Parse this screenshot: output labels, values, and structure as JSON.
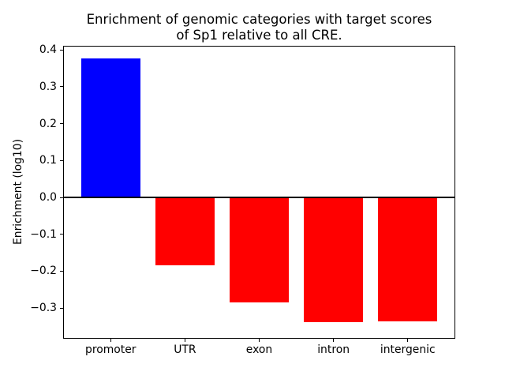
{
  "chart_data": {
    "type": "bar",
    "title": "Enrichment of genomic categories with target scores\nof Sp1 relative to all CRE.",
    "xlabel": "",
    "ylabel": "Enrichment (log10)",
    "categories": [
      "promoter",
      "UTR",
      "exon",
      "intron",
      "intergenic"
    ],
    "values": [
      0.377,
      -0.184,
      -0.284,
      -0.339,
      -0.336
    ],
    "bar_colors": [
      "#0000ff",
      "#ff0000",
      "#ff0000",
      "#ff0000",
      "#ff0000"
    ],
    "positive_color": "#0000ff",
    "negative_color": "#ff0000",
    "bar_width": 0.8,
    "xlim": [
      -0.64,
      4.64
    ],
    "ylim": [
      -0.383,
      0.411
    ],
    "yticks": [
      0.4,
      0.3,
      0.2,
      0.1,
      0.0,
      -0.1,
      -0.2,
      -0.3
    ],
    "ytick_labels": [
      "0.4",
      "0.3",
      "0.2",
      "0.1",
      "0.0",
      "−0.1",
      "−0.2",
      "−0.3"
    ],
    "zero_line": true,
    "zero_line_color": "#000000",
    "grid": false,
    "legend": null,
    "background_color": "#ffffff",
    "spine_color": "#000000"
  }
}
